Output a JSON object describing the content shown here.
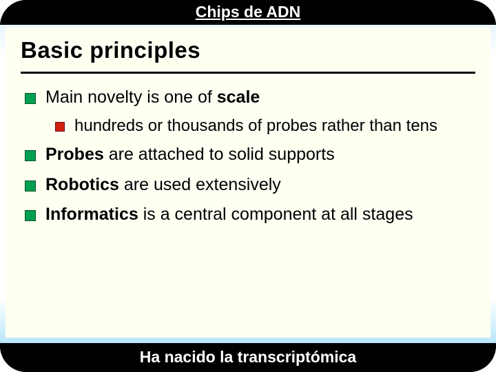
{
  "header": {
    "title": "Chips de ADN"
  },
  "slide": {
    "title": "Basic principles",
    "bullets": [
      {
        "pre": "Main novelty is one of ",
        "bold": "scale",
        "post": "",
        "children": [
          {
            "text": "hundreds or thousands of probes rather than tens"
          }
        ]
      },
      {
        "pre": "",
        "bold": "Probes",
        "post": " are attached to solid supports"
      },
      {
        "pre": "",
        "bold": "Robotics",
        "post": " are used extensively"
      },
      {
        "pre": "",
        "bold": "Informatics",
        "post": " is a central component at all stages"
      }
    ]
  },
  "footer": {
    "text": "Ha nacido la transcriptómica"
  }
}
